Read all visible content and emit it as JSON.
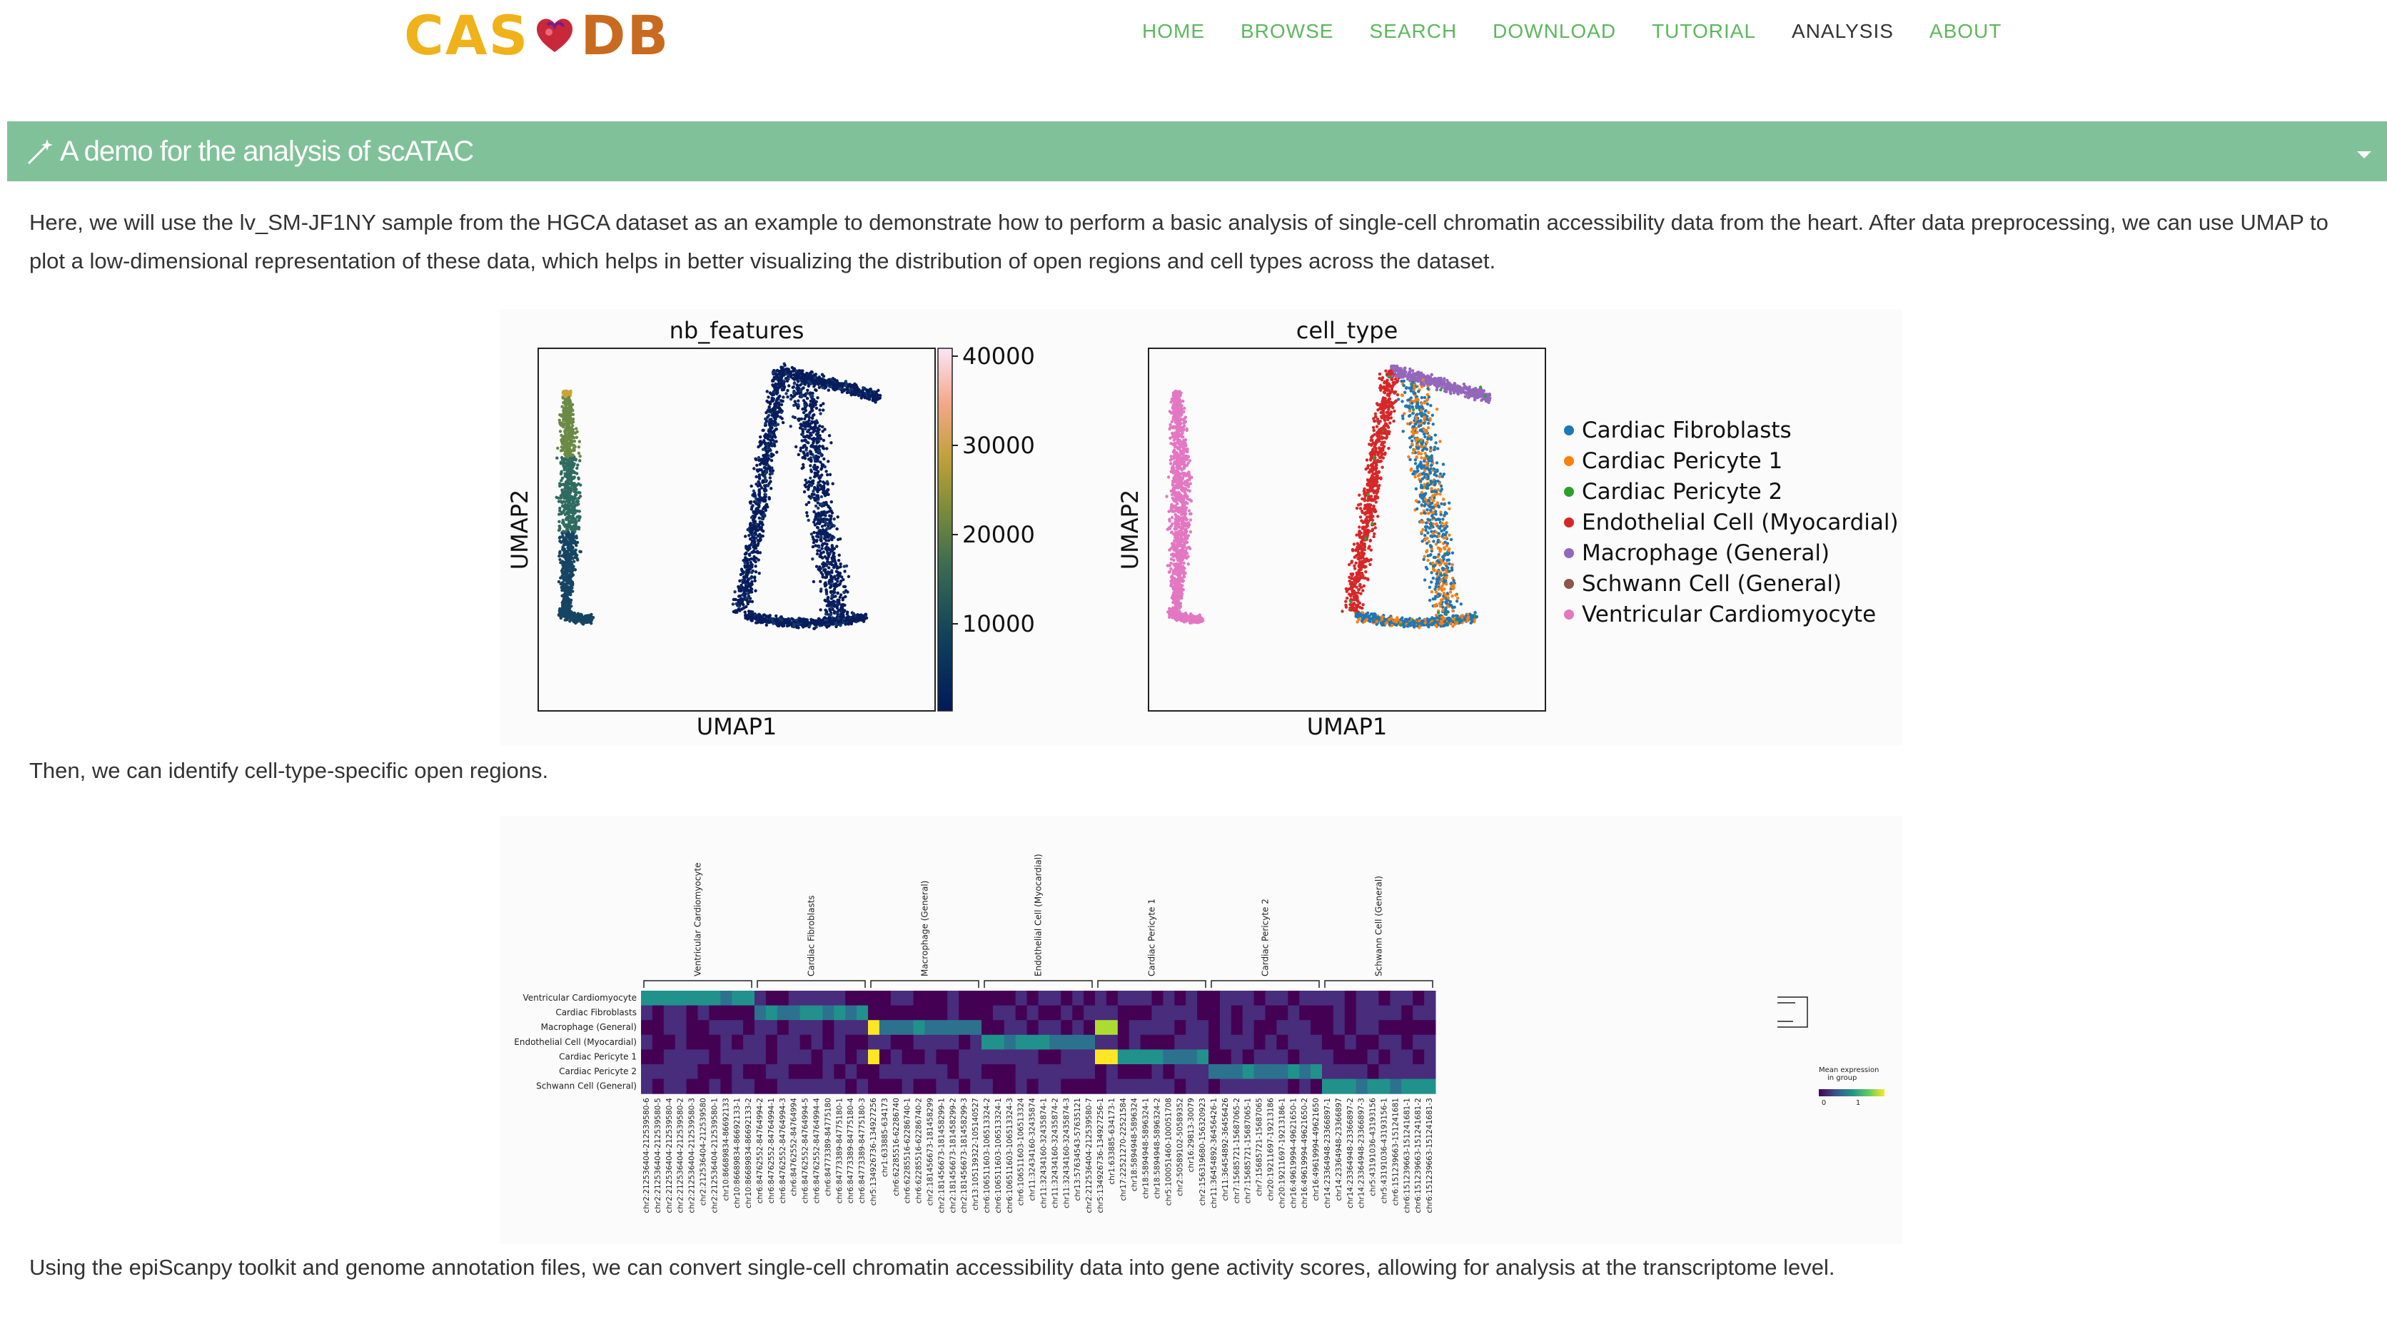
{
  "header": {
    "logo": {
      "left": "CAS",
      "right": "DB"
    },
    "nav": [
      {
        "label": "HOME"
      },
      {
        "label": "BROWSE"
      },
      {
        "label": "SEARCH"
      },
      {
        "label": "DOWNLOAD"
      },
      {
        "label": "TUTORIAL"
      },
      {
        "label": "ANALYSIS",
        "active": true
      },
      {
        "label": "ABOUT"
      }
    ],
    "accent_color": "#5cb85c"
  },
  "panel": {
    "title": "A demo for the analysis of scATAC",
    "color": "#81c19a"
  },
  "paragraphs": {
    "intro": "Here, we will use the lv_SM-JF1NY sample from the HGCA dataset as an example to demonstrate how to perform a basic analysis of single-cell chromatin accessibility data from the heart. After data preprocessing, we can use UMAP to plot a low-dimensional representation of these data, which helps in better visualizing the distribution of open regions and cell types across the dataset.",
    "then": "Then, we can identify cell-type-specific open regions.",
    "using": "Using the epiScanpy toolkit and genome annotation files, we can convert single-cell chromatin accessibility data into gene activity scores, allowing for analysis at the transcriptome level."
  },
  "chart_data": [
    {
      "type": "scatter",
      "title": "nb_features",
      "xlabel": "UMAP1",
      "ylabel": "UMAP2",
      "colorbar_ticks": [
        "40000",
        "30000",
        "20000",
        "10000"
      ],
      "colormap": "batlow"
    },
    {
      "type": "scatter",
      "title": "cell_type",
      "xlabel": "UMAP1",
      "ylabel": "UMAP2",
      "legend": [
        {
          "name": "Cardiac Fibroblasts",
          "color": "#1f77b4"
        },
        {
          "name": "Cardiac Pericyte 1",
          "color": "#ff7f0e"
        },
        {
          "name": "Cardiac Pericyte 2",
          "color": "#2ca02c"
        },
        {
          "name": "Endothelial Cell (Myocardial)",
          "color": "#d62728"
        },
        {
          "name": "Macrophage (General)",
          "color": "#9467bd"
        },
        {
          "name": "Schwann Cell (General)",
          "color": "#8c564b"
        },
        {
          "name": "Ventricular Cardiomyocyte",
          "color": "#e377c2"
        }
      ]
    },
    {
      "type": "heatmap",
      "rows": [
        "Ventricular Cardiomyocyte",
        "Cardiac Fibroblasts",
        "Macrophage (General)",
        "Endothelial Cell (Myocardial)",
        "Cardiac Pericyte 1",
        "Cardiac Pericyte 2",
        "Schwann Cell (General)"
      ],
      "groups": [
        "Ventricular Cardiomyocyte",
        "Cardiac Fibroblasts",
        "Macrophage (General)",
        "Endothelial Cell (Myocardial)",
        "Cardiac Pericyte 1",
        "Cardiac Pericyte 2",
        "Schwann Cell (General)"
      ],
      "legend_title": "Mean expression in group",
      "legend_ticks": [
        "0",
        "1"
      ],
      "columns": [
        "chr2:212536404-212539580-6",
        "chr2:212536404-212539580-5",
        "chr2:212536404-212539580-4",
        "chr2:212536404-212539580-2",
        "chr2:212536404-212539580-3",
        "chr2:212536404-212539580",
        "chr2:212536404-212539580-1",
        "chr10:86689834-86692133",
        "chr10:86689834-86692133-1",
        "chr10:86689834-86692133-2",
        "chr6:84762552-84764994-2",
        "chr6:84762552-84764994-1",
        "chr6:84762552-84764994-3",
        "chr6:84762552-84764994",
        "chr6:84762552-84764994-5",
        "chr6:84762552-84764994-4",
        "chr6:84773389-84775180",
        "chr6:84773389-84775180-1",
        "chr6:84773389-84775180-4",
        "chr6:84773389-84775180-3",
        "chr5:134926736-134927256",
        "chr1:633885-634173",
        "chr6:62285516-62286740",
        "chr6:62285516-62286740-1",
        "chr6:62285516-62286740-2",
        "chr2:181456673-181458299",
        "chr2:181456673-181458299-1",
        "chr2:181456673-181458299-2",
        "chr2:181456673-181458299-3",
        "chr13:105139322-105140527",
        "chr6:106511603-106513324-2",
        "chr6:106511603-106513324-1",
        "chr6:106511603-106513324-3",
        "chr6:106511603-106513324",
        "chr11:32434160-32435874",
        "chr11:32434160-32435874-1",
        "chr11:32434160-32435874-2",
        "chr11:32434160-32435874-3",
        "chr13:57634543-57635121",
        "chr2:212536404-212539580-7",
        "chr5:134926736-134927256-1",
        "chr1:633885-634173-1",
        "chr17:22521270-22521584",
        "chr18:5894948-5896324",
        "chr18:5894948-5896324-1",
        "chr18:5894948-5896324-2",
        "chr5:100051460-100051708",
        "chr2:50589102-50589352",
        "chr16:29813-30079",
        "chr2:156319680-156320923",
        "chr11:36454892-36456426-1",
        "chr11:36454892-36456426",
        "chr7:15685721-15687065-2",
        "chr7:15685721-15687065-1",
        "chr7:15685721-15687065",
        "chr20:19211697-19213186",
        "chr20:19211697-19213186-1",
        "chr16:49619994-49621650-1",
        "chr16:49619994-49621650-2",
        "chr16:49619994-49621650",
        "chr14:23364948-23366897-1",
        "chr14:23364948-23366897",
        "chr14:23364948-23366897-2",
        "chr14:23364948-23366897-3",
        "chr5:43191036-43193156",
        "chr5:43191036-43193156-1",
        "chr6:151239663-151241681",
        "chr6:151239663-151241681-1",
        "chr6:151239663-151241681-2",
        "chr6:151239663-151241681-3"
      ]
    }
  ]
}
